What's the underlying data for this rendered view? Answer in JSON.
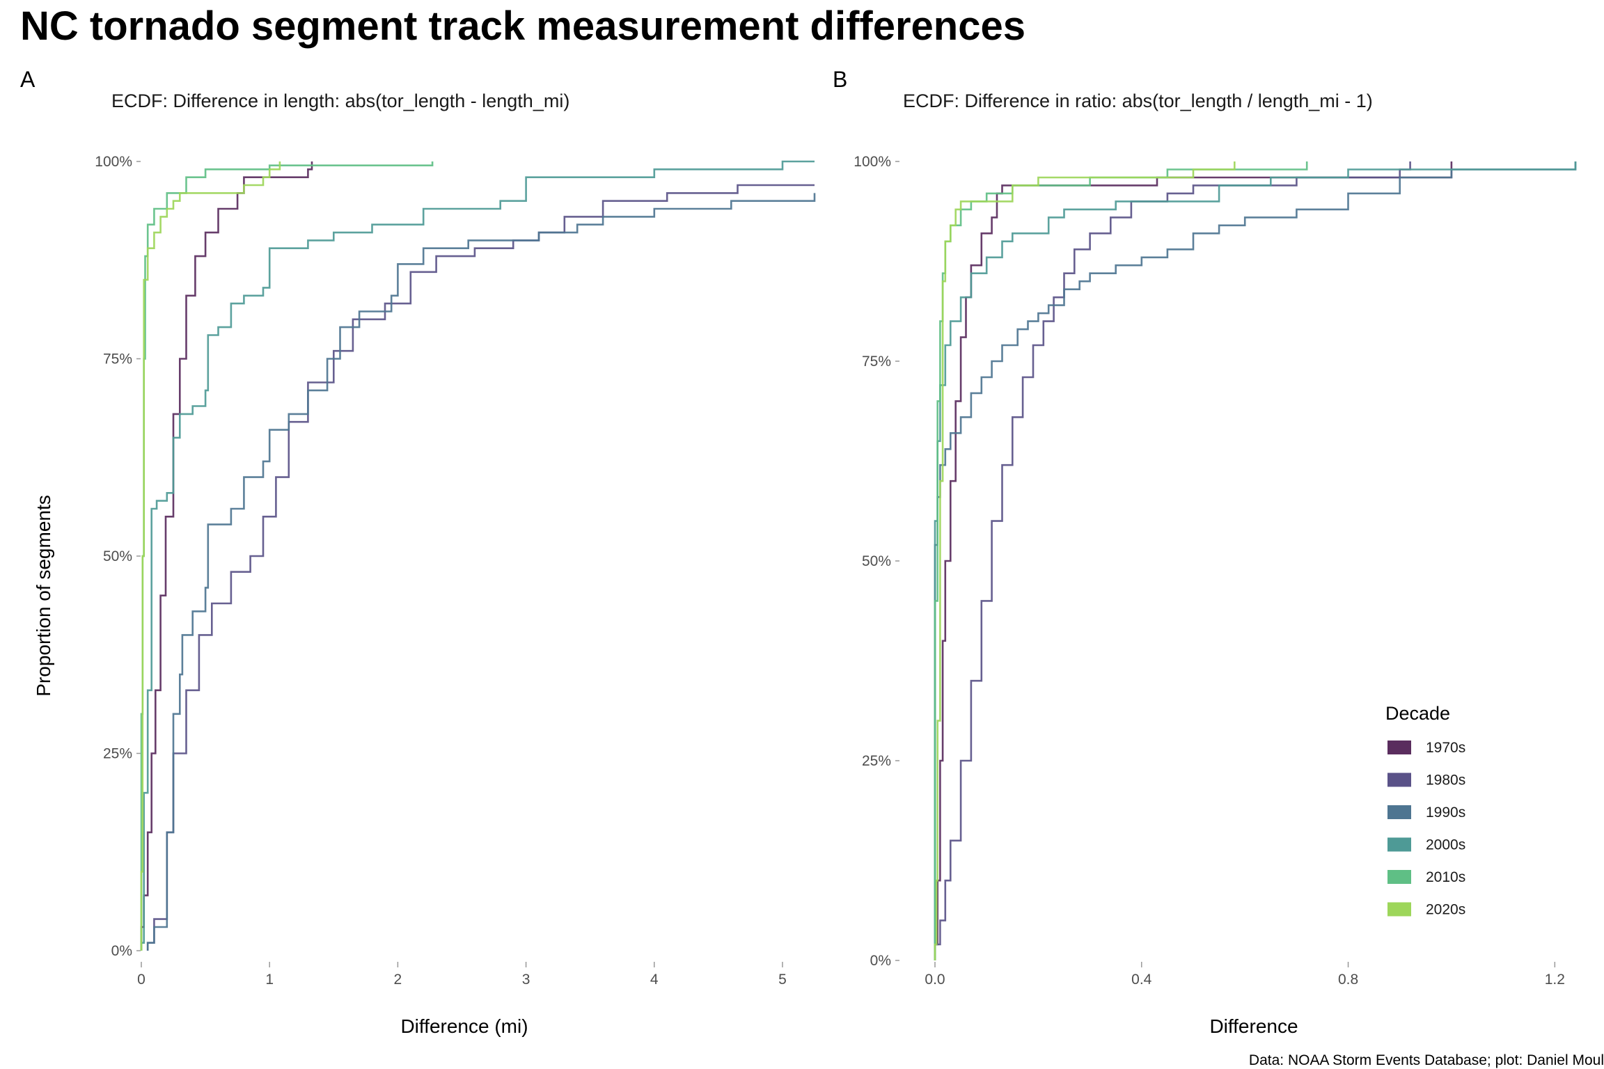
{
  "title": "NC tornado segment track measurement differences",
  "caption": "Data: NOAA Storm Events Database; plot: Daniel Moul",
  "legend": {
    "title": "Decade",
    "entries": [
      {
        "label": "1970s",
        "color": "#5a2d5e"
      },
      {
        "label": "1980s",
        "color": "#5a5288"
      },
      {
        "label": "1990s",
        "color": "#4e7591"
      },
      {
        "label": "2000s",
        "color": "#4e9a96"
      },
      {
        "label": "2010s",
        "color": "#5fbf85"
      },
      {
        "label": "2020s",
        "color": "#9dd65a"
      }
    ]
  },
  "chart_data": [
    {
      "type": "line",
      "tag": "A",
      "title": "ECDF: Difference in length: abs(tor_length - length_mi)",
      "xlabel": "Difference (mi)",
      "ylabel": "Proportion of segments",
      "xlim": [
        -0.1,
        5.25
      ],
      "ylim": [
        0,
        1
      ],
      "x_ticks": [
        0,
        1,
        2,
        3,
        4,
        5
      ],
      "x_tick_labels": [
        "0",
        "1",
        "2",
        "3",
        "4",
        "5"
      ],
      "y_ticks": [
        0,
        0.25,
        0.5,
        0.75,
        1
      ],
      "y_tick_labels": [
        "0%",
        "25%",
        "50%",
        "75%",
        "100%"
      ],
      "series": [
        {
          "name": "1970s",
          "points": [
            [
              0,
              0.03
            ],
            [
              0.02,
              0.07
            ],
            [
              0.05,
              0.15
            ],
            [
              0.08,
              0.25
            ],
            [
              0.11,
              0.33
            ],
            [
              0.15,
              0.45
            ],
            [
              0.19,
              0.55
            ],
            [
              0.25,
              0.68
            ],
            [
              0.3,
              0.75
            ],
            [
              0.35,
              0.83
            ],
            [
              0.42,
              0.88
            ],
            [
              0.5,
              0.91
            ],
            [
              0.6,
              0.94
            ],
            [
              0.75,
              0.96
            ],
            [
              0.8,
              0.98
            ],
            [
              1.3,
              0.99
            ],
            [
              1.33,
              1.0
            ]
          ]
        },
        {
          "name": "1980s",
          "points": [
            [
              0.05,
              0.01
            ],
            [
              0.1,
              0.04
            ],
            [
              0.2,
              0.15
            ],
            [
              0.25,
              0.25
            ],
            [
              0.35,
              0.33
            ],
            [
              0.45,
              0.4
            ],
            [
              0.55,
              0.44
            ],
            [
              0.7,
              0.48
            ],
            [
              0.85,
              0.5
            ],
            [
              0.95,
              0.55
            ],
            [
              1.05,
              0.6
            ],
            [
              1.15,
              0.67
            ],
            [
              1.3,
              0.72
            ],
            [
              1.5,
              0.76
            ],
            [
              1.65,
              0.8
            ],
            [
              1.9,
              0.82
            ],
            [
              2.1,
              0.86
            ],
            [
              2.3,
              0.88
            ],
            [
              2.6,
              0.89
            ],
            [
              2.9,
              0.9
            ],
            [
              3.1,
              0.91
            ],
            [
              3.3,
              0.93
            ],
            [
              3.6,
              0.95
            ],
            [
              4.1,
              0.96
            ],
            [
              4.6,
              0.96
            ],
            [
              4.65,
              0.97
            ],
            [
              5.25,
              0.97
            ]
          ]
        },
        {
          "name": "1990s",
          "points": [
            [
              0.05,
              0.01
            ],
            [
              0.1,
              0.03
            ],
            [
              0.2,
              0.15
            ],
            [
              0.25,
              0.3
            ],
            [
              0.3,
              0.35
            ],
            [
              0.32,
              0.4
            ],
            [
              0.4,
              0.43
            ],
            [
              0.5,
              0.46
            ],
            [
              0.52,
              0.54
            ],
            [
              0.7,
              0.56
            ],
            [
              0.8,
              0.6
            ],
            [
              0.95,
              0.62
            ],
            [
              1.0,
              0.66
            ],
            [
              1.15,
              0.68
            ],
            [
              1.3,
              0.71
            ],
            [
              1.45,
              0.75
            ],
            [
              1.55,
              0.79
            ],
            [
              1.7,
              0.81
            ],
            [
              1.95,
              0.83
            ],
            [
              2.0,
              0.87
            ],
            [
              2.2,
              0.89
            ],
            [
              2.55,
              0.9
            ],
            [
              3.1,
              0.91
            ],
            [
              3.4,
              0.92
            ],
            [
              3.6,
              0.93
            ],
            [
              4.0,
              0.94
            ],
            [
              4.6,
              0.95
            ],
            [
              5.25,
              0.96
            ]
          ]
        },
        {
          "name": "2000s",
          "points": [
            [
              0,
              0.01
            ],
            [
              0.02,
              0.2
            ],
            [
              0.05,
              0.33
            ],
            [
              0.08,
              0.56
            ],
            [
              0.12,
              0.57
            ],
            [
              0.2,
              0.58
            ],
            [
              0.25,
              0.65
            ],
            [
              0.3,
              0.68
            ],
            [
              0.4,
              0.69
            ],
            [
              0.5,
              0.71
            ],
            [
              0.52,
              0.78
            ],
            [
              0.6,
              0.79
            ],
            [
              0.7,
              0.82
            ],
            [
              0.8,
              0.83
            ],
            [
              0.95,
              0.84
            ],
            [
              1.0,
              0.89
            ],
            [
              1.3,
              0.9
            ],
            [
              1.5,
              0.91
            ],
            [
              1.8,
              0.92
            ],
            [
              2.2,
              0.94
            ],
            [
              2.8,
              0.95
            ],
            [
              3.0,
              0.98
            ],
            [
              3.3,
              0.98
            ],
            [
              4.0,
              0.99
            ],
            [
              5.0,
              1.0
            ],
            [
              5.25,
              1.0
            ]
          ]
        },
        {
          "name": "2010s",
          "points": [
            [
              0,
              0.3
            ],
            [
              0.01,
              0.5
            ],
            [
              0.02,
              0.75
            ],
            [
              0.03,
              0.88
            ],
            [
              0.05,
              0.92
            ],
            [
              0.1,
              0.94
            ],
            [
              0.2,
              0.96
            ],
            [
              0.35,
              0.98
            ],
            [
              0.5,
              0.99
            ],
            [
              0.6,
              0.99
            ],
            [
              1.0,
              0.995
            ],
            [
              2.27,
              1.0
            ]
          ]
        },
        {
          "name": "2020s",
          "points": [
            [
              0,
              0.1
            ],
            [
              0.01,
              0.5
            ],
            [
              0.02,
              0.85
            ],
            [
              0.05,
              0.89
            ],
            [
              0.1,
              0.91
            ],
            [
              0.15,
              0.93
            ],
            [
              0.2,
              0.94
            ],
            [
              0.25,
              0.95
            ],
            [
              0.3,
              0.96
            ],
            [
              0.6,
              0.96
            ],
            [
              0.8,
              0.97
            ],
            [
              0.95,
              0.98
            ],
            [
              1.0,
              0.99
            ],
            [
              1.05,
              0.99
            ],
            [
              1.08,
              1.0
            ]
          ]
        }
      ]
    },
    {
      "type": "line",
      "tag": "B",
      "title": "ECDF: Difference in ratio: abs(tor_length / length_mi - 1)",
      "xlabel": "Difference",
      "ylabel": "",
      "xlim": [
        -0.02,
        1.24
      ],
      "ylim": [
        0,
        1
      ],
      "x_ticks": [
        0,
        0.4,
        0.8,
        1.2
      ],
      "x_tick_labels": [
        "0.0",
        "0.4",
        "0.8",
        "1.2"
      ],
      "y_ticks": [
        0,
        0.25,
        0.5,
        0.75,
        1
      ],
      "y_tick_labels": [
        "0%",
        "25%",
        "50%",
        "75%",
        "100%"
      ],
      "series": [
        {
          "name": "1970s",
          "points": [
            [
              0,
              0.02
            ],
            [
              0.005,
              0.1
            ],
            [
              0.01,
              0.25
            ],
            [
              0.015,
              0.4
            ],
            [
              0.02,
              0.5
            ],
            [
              0.03,
              0.6
            ],
            [
              0.04,
              0.7
            ],
            [
              0.05,
              0.78
            ],
            [
              0.06,
              0.83
            ],
            [
              0.07,
              0.87
            ],
            [
              0.09,
              0.91
            ],
            [
              0.11,
              0.93
            ],
            [
              0.12,
              0.96
            ],
            [
              0.13,
              0.97
            ],
            [
              0.3,
              0.97
            ],
            [
              0.42,
              0.97
            ],
            [
              0.43,
              0.98
            ],
            [
              1.0,
              0.99
            ],
            [
              1.0,
              1.0
            ]
          ]
        },
        {
          "name": "1980s",
          "points": [
            [
              0,
              0.02
            ],
            [
              0.01,
              0.05
            ],
            [
              0.02,
              0.1
            ],
            [
              0.03,
              0.15
            ],
            [
              0.05,
              0.25
            ],
            [
              0.07,
              0.35
            ],
            [
              0.09,
              0.45
            ],
            [
              0.11,
              0.55
            ],
            [
              0.13,
              0.62
            ],
            [
              0.15,
              0.68
            ],
            [
              0.17,
              0.73
            ],
            [
              0.19,
              0.77
            ],
            [
              0.21,
              0.8
            ],
            [
              0.23,
              0.83
            ],
            [
              0.25,
              0.86
            ],
            [
              0.27,
              0.89
            ],
            [
              0.3,
              0.91
            ],
            [
              0.34,
              0.93
            ],
            [
              0.38,
              0.95
            ],
            [
              0.45,
              0.96
            ],
            [
              0.5,
              0.97
            ],
            [
              0.7,
              0.98
            ],
            [
              0.9,
              0.99
            ],
            [
              0.92,
              1.0
            ]
          ]
        },
        {
          "name": "1990s",
          "points": [
            [
              0,
              0.52
            ],
            [
              0.005,
              0.58
            ],
            [
              0.01,
              0.62
            ],
            [
              0.02,
              0.64
            ],
            [
              0.03,
              0.66
            ],
            [
              0.05,
              0.68
            ],
            [
              0.07,
              0.71
            ],
            [
              0.09,
              0.73
            ],
            [
              0.11,
              0.75
            ],
            [
              0.13,
              0.77
            ],
            [
              0.16,
              0.79
            ],
            [
              0.18,
              0.8
            ],
            [
              0.2,
              0.81
            ],
            [
              0.22,
              0.82
            ],
            [
              0.25,
              0.84
            ],
            [
              0.28,
              0.85
            ],
            [
              0.3,
              0.86
            ],
            [
              0.35,
              0.87
            ],
            [
              0.4,
              0.88
            ],
            [
              0.45,
              0.89
            ],
            [
              0.5,
              0.91
            ],
            [
              0.55,
              0.92
            ],
            [
              0.6,
              0.93
            ],
            [
              0.7,
              0.94
            ],
            [
              0.8,
              0.96
            ],
            [
              0.9,
              0.98
            ],
            [
              1.0,
              0.99
            ],
            [
              1.1,
              0.99
            ],
            [
              1.24,
              1.0
            ]
          ]
        },
        {
          "name": "2000s",
          "points": [
            [
              0,
              0.55
            ],
            [
              0.005,
              0.65
            ],
            [
              0.01,
              0.72
            ],
            [
              0.02,
              0.77
            ],
            [
              0.03,
              0.8
            ],
            [
              0.05,
              0.83
            ],
            [
              0.07,
              0.86
            ],
            [
              0.1,
              0.88
            ],
            [
              0.13,
              0.9
            ],
            [
              0.15,
              0.91
            ],
            [
              0.2,
              0.91
            ],
            [
              0.22,
              0.93
            ],
            [
              0.25,
              0.94
            ],
            [
              0.3,
              0.94
            ],
            [
              0.35,
              0.95
            ],
            [
              0.45,
              0.95
            ],
            [
              0.55,
              0.97
            ],
            [
              0.65,
              0.98
            ],
            [
              0.8,
              0.99
            ],
            [
              1.0,
              0.99
            ],
            [
              1.24,
              1.0
            ]
          ]
        },
        {
          "name": "2010s",
          "points": [
            [
              0,
              0.45
            ],
            [
              0.005,
              0.7
            ],
            [
              0.01,
              0.8
            ],
            [
              0.015,
              0.86
            ],
            [
              0.02,
              0.9
            ],
            [
              0.03,
              0.92
            ],
            [
              0.05,
              0.94
            ],
            [
              0.07,
              0.95
            ],
            [
              0.1,
              0.96
            ],
            [
              0.15,
              0.97
            ],
            [
              0.2,
              0.97
            ],
            [
              0.3,
              0.98
            ],
            [
              0.45,
              0.99
            ],
            [
              0.5,
              0.99
            ],
            [
              0.72,
              1.0
            ]
          ]
        },
        {
          "name": "2020s",
          "points": [
            [
              0,
              0.02
            ],
            [
              0.003,
              0.1
            ],
            [
              0.005,
              0.3
            ],
            [
              0.01,
              0.6
            ],
            [
              0.015,
              0.85
            ],
            [
              0.02,
              0.9
            ],
            [
              0.03,
              0.92
            ],
            [
              0.04,
              0.94
            ],
            [
              0.05,
              0.95
            ],
            [
              0.1,
              0.95
            ],
            [
              0.15,
              0.97
            ],
            [
              0.2,
              0.98
            ],
            [
              0.4,
              0.98
            ],
            [
              0.5,
              0.99
            ],
            [
              0.58,
              1.0
            ]
          ]
        }
      ]
    }
  ]
}
